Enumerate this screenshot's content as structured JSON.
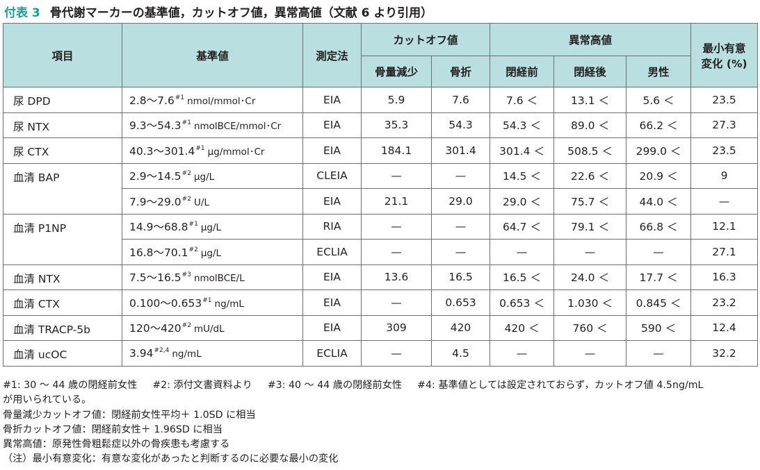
{
  "title": {
    "number": "付表 3",
    "text": "骨代謝マーカーの基準値，カットオフ値，異常高値（文献 6 より引用）"
  },
  "header": {
    "item": "項目",
    "reference": "基準値",
    "method": "測定法",
    "cutoff": "カットオフ値",
    "cutoff_bone_loss": "骨量減少",
    "cutoff_fracture": "骨折",
    "abnormal": "異常高値",
    "abnormal_pre": "閉経前",
    "abnormal_post": "閉経後",
    "abnormal_male": "男性",
    "mscc_line1": "最小有意",
    "mscc_line2": "変化 (%)"
  },
  "rows": [
    {
      "item": "尿 DPD",
      "range": "2.8〜7.6",
      "note": "#1",
      "unit": "nmol/mmol･Cr",
      "method": "EIA",
      "bone_loss": "5.9",
      "fracture": "7.6",
      "pre": "7.6 ＜",
      "post": "13.1 ＜",
      "male": "5.6 ＜",
      "mscc": "23.5"
    },
    {
      "item": "尿 NTX",
      "range": "9.3〜54.3",
      "note": "#1",
      "unit": "nmolBCE/mmol･Cr",
      "method": "EIA",
      "bone_loss": "35.3",
      "fracture": "54.3",
      "pre": "54.3 ＜",
      "post": "89.0 ＜",
      "male": "66.2 ＜",
      "mscc": "27.3"
    },
    {
      "item": "尿 CTX",
      "range": "40.3〜301.4",
      "note": "#1",
      "unit": "μg/mmol･Cr",
      "method": "EIA",
      "bone_loss": "184.1",
      "fracture": "301.4",
      "pre": "301.4 ＜",
      "post": "508.5 ＜",
      "male": "299.0 ＜",
      "mscc": "23.5"
    },
    {
      "item": "血清 BAP",
      "range": "2.9〜14.5",
      "note": "#2",
      "unit": "μg/L",
      "method": "CLEIA",
      "bone_loss": "—",
      "fracture": "—",
      "pre": "14.5 ＜",
      "post": "22.6 ＜",
      "male": "20.9 ＜",
      "mscc": "9"
    },
    {
      "item": "",
      "range": "7.9〜29.0",
      "note": "#2",
      "unit": "U/L",
      "method": "EIA",
      "bone_loss": "21.1",
      "fracture": "29.0",
      "pre": "29.0 ＜",
      "post": "75.7 ＜",
      "male": "44.0 ＜",
      "mscc": "—"
    },
    {
      "item": "血清 P1NP",
      "range": "14.9〜68.8",
      "note": "#1",
      "unit": "μg/L",
      "method": "RIA",
      "bone_loss": "—",
      "fracture": "—",
      "pre": "64.7 ＜",
      "post": "79.1 ＜",
      "male": "66.8 ＜",
      "mscc": "12.1"
    },
    {
      "item": "",
      "range": "16.8〜70.1",
      "note": "#2",
      "unit": "μg/L",
      "method": "ECLIA",
      "bone_loss": "—",
      "fracture": "—",
      "pre": "—",
      "post": "—",
      "male": "—",
      "mscc": "27.1"
    },
    {
      "item": "血清 NTX",
      "range": "7.5〜16.5",
      "note": "#3",
      "unit": "nmolBCE/L",
      "method": "EIA",
      "bone_loss": "13.6",
      "fracture": "16.5",
      "pre": "16.5 ＜",
      "post": "24.0 ＜",
      "male": "17.7 ＜",
      "mscc": "16.3"
    },
    {
      "item": "血清 CTX",
      "range": "0.100〜0.653",
      "note": "#1",
      "unit": "ng/mL",
      "method": "EIA",
      "bone_loss": "—",
      "fracture": "0.653",
      "pre": "0.653 ＜",
      "post": "1.030 ＜",
      "male": "0.845 ＜",
      "mscc": "23.2"
    },
    {
      "item": "血清 TRACP-5b",
      "range": "120〜420",
      "note": "#2",
      "unit": "mU/dL",
      "method": "EIA",
      "bone_loss": "309",
      "fracture": "420",
      "pre": "420 ＜",
      "post": "760 ＜",
      "male": "590 ＜",
      "mscc": "12.4"
    },
    {
      "item": "血清 ucOC",
      "range": "3.94",
      "note": "#2,4",
      "unit": "ng/mL",
      "method": "ECLIA",
      "bone_loss": "—",
      "fracture": "4.5",
      "pre": "—",
      "post": "—",
      "male": "—",
      "mscc": "32.2"
    }
  ],
  "notes": {
    "n1": "#1: 30 〜 44 歳の閉経前女性",
    "n2": "#2: 添付文書資料より",
    "n3": "#3: 40 〜 44 歳の閉経前女性",
    "n4": "#4: 基準値としては設定されておらず，カットオフ値 4.5ng/mL",
    "n4_cont": "が用いられている。",
    "bone_loss": "骨量減少カットオフ値：閉経前女性平均＋ 1.0SD に相当",
    "fracture": "骨折カットオフ値：閉経前女性＋ 1.96SD に相当",
    "abnormal": "異常高値：原発性骨粗鬆症以外の骨疾患も考慮する",
    "mscc": "（注）最小有意変化：有意な変化があったと判断するのに必要な最小の変化"
  },
  "colors": {
    "header_bg": "#b9dfe0",
    "title_accent": "#1a9a9a",
    "border": "#6d6e71"
  }
}
